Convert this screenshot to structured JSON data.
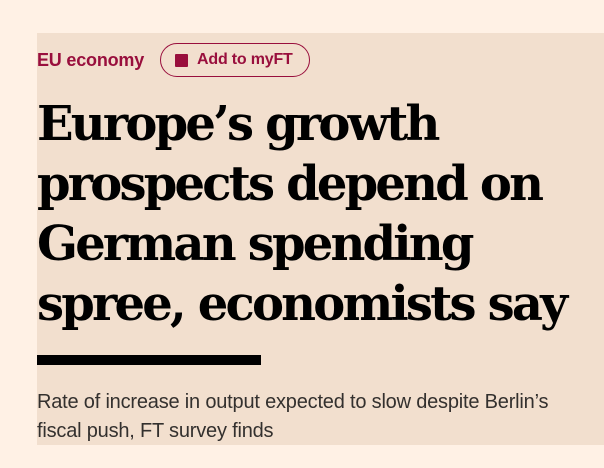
{
  "article": {
    "topic": "EU economy",
    "follow_button_label": "Add to myFT",
    "follow_icon": "square-icon",
    "headline": "Europe’s growth prospects depend on German spending spree, economists say",
    "standfirst": "Rate of increase in output expected to slow despite Berlin’s fiscal push, FT survey finds"
  },
  "colors": {
    "page_background": "#FFF1E5",
    "panel_background": "#F2DFCE",
    "accent": "#990F3D",
    "text": "#000000",
    "standfirst_text": "#33302E"
  }
}
